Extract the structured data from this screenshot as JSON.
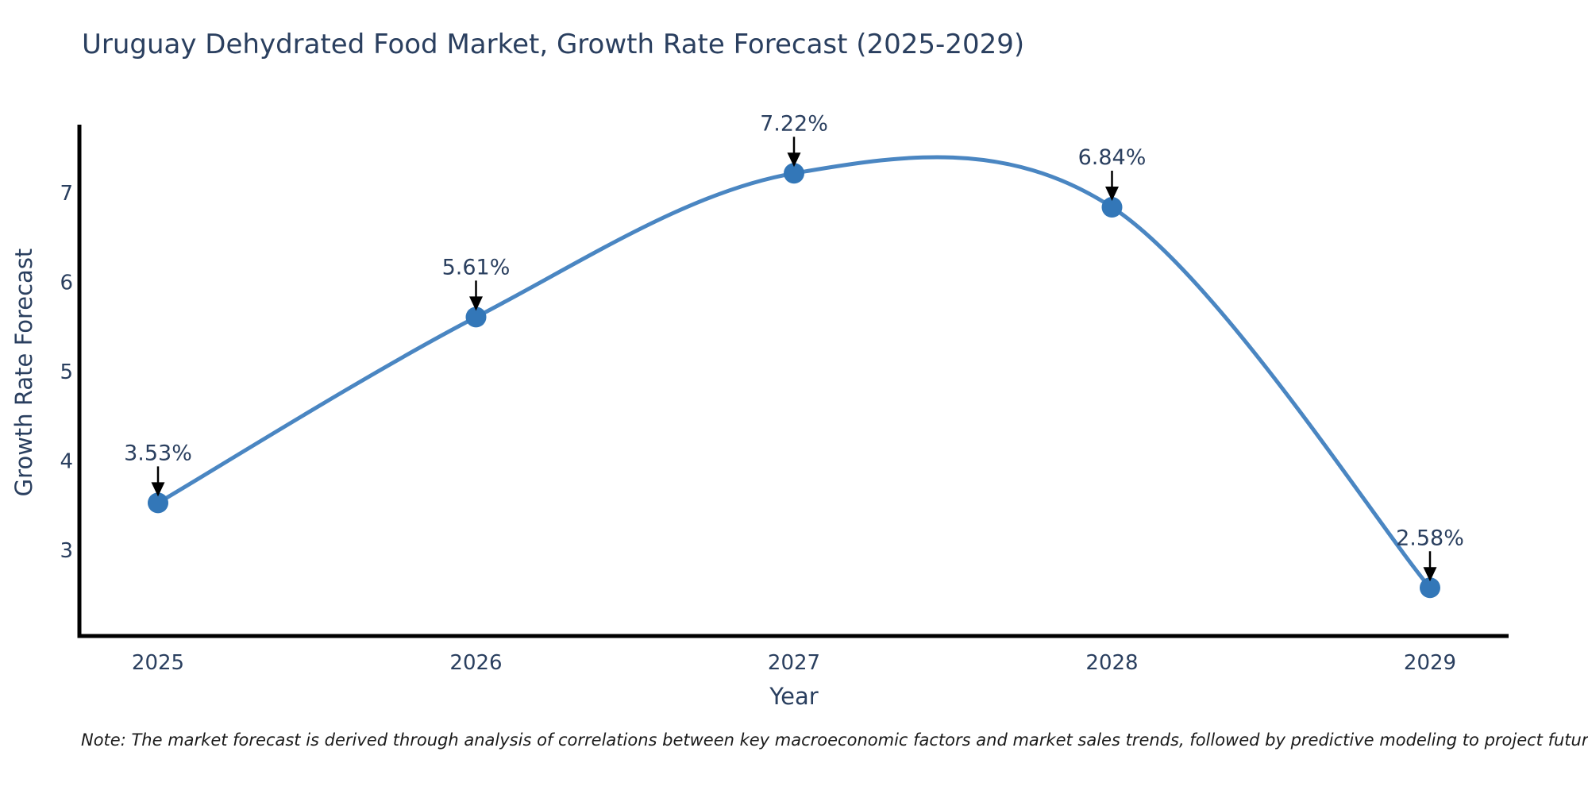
{
  "header": {
    "title": "Uruguay Dehydrated Food Market, Growth Rate Forecast (2025-2029)"
  },
  "footnote": {
    "text": "Note: The market forecast is derived through analysis of correlations between key macroeconomic factors and market sales trends, followed by predictive modeling to project future sales."
  },
  "chart_data": {
    "type": "line",
    "title": "Uruguay Dehydrated Food Market, Growth Rate Forecast (2025-2029)",
    "xlabel": "Year",
    "ylabel": "Growth Rate Forecast",
    "line_shape": "spline",
    "grid": false,
    "legend": "none",
    "x": [
      2025,
      2026,
      2027,
      2028,
      2029
    ],
    "y": [
      3.53,
      5.61,
      7.22,
      6.84,
      2.58
    ],
    "point_labels": [
      "3.53%",
      "5.61%",
      "7.22%",
      "6.84%",
      "2.58%"
    ],
    "xticks": [
      "2025",
      "2026",
      "2027",
      "2028",
      "2029"
    ],
    "yticks": [
      3,
      4,
      5,
      6,
      7
    ],
    "xlim": [
      2024.75,
      2029.25
    ],
    "ylim": [
      2.05,
      7.75
    ],
    "colors": {
      "line": "#4a86c2",
      "marker": "#3377b8",
      "arrow": "#000000",
      "axis_spine": "#000000",
      "text": "#2a3f5f",
      "note": "#1a1a1a",
      "background": "#ffffff"
    }
  }
}
